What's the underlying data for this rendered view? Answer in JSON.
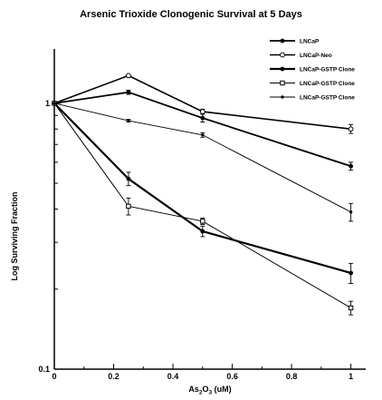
{
  "chart_data": {
    "type": "line",
    "title": "Arsenic Trioxide Clonogenic Survival at 5 Days",
    "xlabel_main": "As",
    "xlabel_sub1": "2",
    "xlabel_mid": "O",
    "xlabel_sub2": "3",
    "xlabel_tail": " (uM)",
    "ylabel": "Log Surviving Fraction",
    "xlim": [
      0,
      1.05
    ],
    "ylim": [
      0.1,
      1.6
    ],
    "yscale": "log",
    "x_ticks": [
      0,
      0.2,
      0.4,
      0.6,
      0.8,
      1
    ],
    "x_tick_labels": [
      "0",
      "0.2",
      "0.4",
      "0.6",
      "0.8",
      "1"
    ],
    "y_ticks": [
      0.1,
      1
    ],
    "y_tick_labels": [
      "0.1",
      "1"
    ],
    "x": [
      0,
      0.25,
      0.5,
      1
    ],
    "legend_position": "top-right",
    "series": [
      {
        "name": "LNCaP",
        "values": [
          1.0,
          1.1,
          0.88,
          0.58
        ],
        "errors": [
          0,
          0.02,
          0.03,
          0.02
        ],
        "marker": "filled-circle",
        "stroke_width": 1.8
      },
      {
        "name": "LNCaP-Neo",
        "values": [
          1.0,
          1.27,
          0.93,
          0.8
        ],
        "errors": [
          0,
          0,
          0.02,
          0.03
        ],
        "marker": "open-circle",
        "stroke_width": 1.6
      },
      {
        "name": "LNCaP-GSTP Clone",
        "values": [
          1.0,
          0.52,
          0.33,
          0.23
        ],
        "errors": [
          0,
          0.03,
          0.015,
          0.02
        ],
        "marker": "filled-circle",
        "stroke_width": 2.2
      },
      {
        "name": "LNCaP-GSTP Clone",
        "values": [
          1.0,
          0.41,
          0.36,
          0.17
        ],
        "errors": [
          0,
          0.03,
          0.01,
          0.01
        ],
        "marker": "open-square",
        "stroke_width": 1.0
      },
      {
        "name": "LNCaP-GSTP Clone",
        "values": [
          1.0,
          0.86,
          0.76,
          0.39
        ],
        "errors": [
          0,
          0.01,
          0.015,
          0.03
        ],
        "marker": "small-filled-circle",
        "stroke_width": 0.9
      }
    ]
  }
}
